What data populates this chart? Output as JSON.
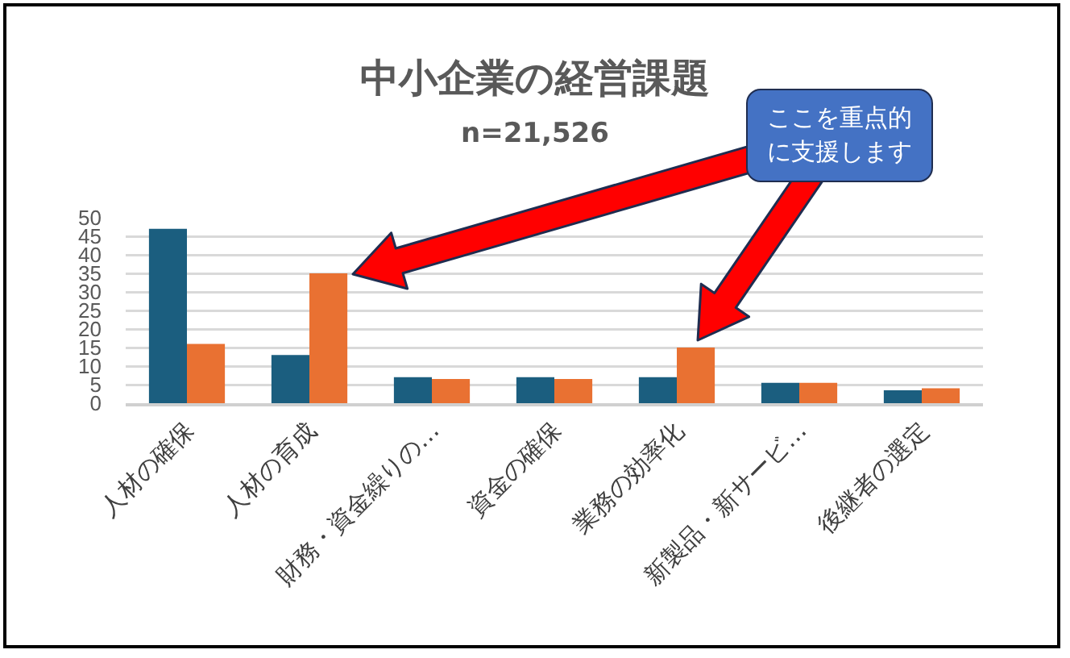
{
  "chart_data": {
    "type": "bar",
    "title": "中小企業の経営課題",
    "subtitle": "n=21,526",
    "categories": [
      "人材の確保",
      "人材の育成",
      "財務・資金繰りの…",
      "資金の確保",
      "業務の効率化",
      "新製品・新サービ…",
      "後継者の選定"
    ],
    "series": [
      {
        "color": "#1b5e7f",
        "values": [
          47,
          13,
          7,
          7,
          7,
          5.5,
          3.5
        ]
      },
      {
        "color": "#e97132",
        "values": [
          16,
          35,
          6.5,
          6.5,
          15,
          5.5,
          4
        ]
      }
    ],
    "ylim": [
      0,
      50
    ],
    "yticks": [
      0,
      5,
      10,
      15,
      20,
      25,
      30,
      35,
      40,
      45,
      50
    ],
    "grid": "y",
    "annotations": [
      "ここを重点的に支援します"
    ]
  }
}
